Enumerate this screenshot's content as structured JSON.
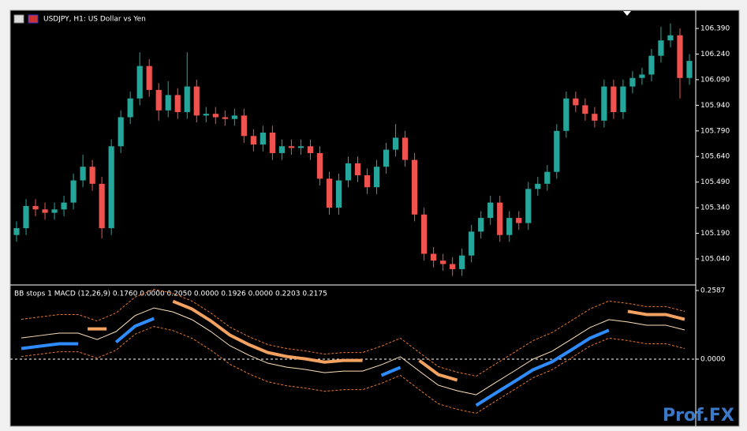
{
  "chart_data": [
    {
      "type": "candlestick",
      "title": "USDJPY, H1:  US Dollar vs Yen",
      "up_color": "#26a69a",
      "down_color": "#ef5350",
      "open": [
        105.18,
        105.22,
        105.35,
        105.33,
        105.31,
        105.33,
        105.37,
        105.5,
        105.58,
        105.48,
        105.22,
        105.7,
        105.87,
        105.98,
        106.17,
        106.03,
        105.91,
        106.0,
        105.9,
        106.05,
        105.88,
        105.89,
        105.87,
        105.86,
        105.88,
        105.76,
        105.71,
        105.78,
        105.66,
        105.7,
        105.69,
        105.7,
        105.66,
        105.51,
        105.34,
        105.5,
        105.6,
        105.53,
        105.46,
        105.58,
        105.68,
        105.75,
        105.62,
        105.3,
        105.07,
        105.03,
        105.01,
        104.98,
        105.06,
        105.2,
        105.28,
        105.37,
        105.18,
        105.28,
        105.25,
        105.45,
        105.48,
        105.55,
        105.79,
        105.98,
        105.94,
        105.89,
        105.85,
        106.05,
        105.9,
        106.05,
        106.1,
        106.12,
        106.23,
        106.32,
        106.35,
        106.1
      ],
      "high": [
        105.26,
        105.39,
        105.39,
        105.37,
        105.37,
        105.41,
        105.54,
        105.65,
        105.62,
        105.52,
        105.74,
        105.91,
        106.02,
        106.25,
        106.21,
        106.07,
        106.08,
        106.04,
        106.25,
        106.09,
        105.93,
        105.93,
        105.91,
        105.92,
        105.92,
        105.8,
        105.82,
        105.82,
        105.74,
        105.74,
        105.74,
        105.74,
        105.7,
        105.55,
        105.54,
        105.64,
        105.64,
        105.57,
        105.62,
        105.72,
        105.83,
        105.79,
        105.66,
        105.34,
        105.11,
        105.07,
        105.05,
        105.1,
        105.24,
        105.32,
        105.41,
        105.41,
        105.32,
        105.32,
        105.49,
        105.52,
        105.59,
        105.83,
        106.02,
        106.02,
        105.98,
        105.93,
        106.09,
        106.09,
        106.09,
        106.14,
        106.16,
        106.27,
        106.4,
        106.42,
        106.39,
        106.24
      ],
      "low": [
        105.14,
        105.18,
        105.29,
        105.27,
        105.27,
        105.29,
        105.33,
        105.46,
        105.44,
        105.16,
        105.18,
        105.66,
        105.83,
        105.94,
        105.99,
        105.85,
        105.87,
        105.86,
        105.86,
        105.84,
        105.84,
        105.83,
        105.82,
        105.82,
        105.72,
        105.67,
        105.67,
        105.62,
        105.62,
        105.65,
        105.65,
        105.62,
        105.47,
        105.3,
        105.3,
        105.46,
        105.49,
        105.42,
        105.42,
        105.54,
        105.64,
        105.58,
        105.26,
        105.03,
        104.99,
        104.97,
        104.94,
        104.94,
        105.02,
        105.16,
        105.24,
        105.14,
        105.14,
        105.21,
        105.21,
        105.41,
        105.44,
        105.51,
        105.75,
        105.9,
        105.85,
        105.81,
        105.81,
        105.86,
        105.86,
        106.01,
        106.06,
        106.08,
        106.19,
        106.28,
        105.98,
        106.06
      ],
      "close": [
        105.22,
        105.35,
        105.33,
        105.31,
        105.33,
        105.37,
        105.5,
        105.58,
        105.48,
        105.22,
        105.7,
        105.87,
        105.98,
        106.17,
        106.03,
        105.91,
        106.0,
        105.9,
        106.05,
        105.88,
        105.89,
        105.87,
        105.86,
        105.88,
        105.76,
        105.71,
        105.78,
        105.66,
        105.7,
        105.69,
        105.7,
        105.66,
        105.51,
        105.34,
        105.5,
        105.6,
        105.53,
        105.46,
        105.58,
        105.68,
        105.75,
        105.62,
        105.3,
        105.07,
        105.03,
        105.01,
        104.98,
        105.06,
        105.2,
        105.28,
        105.37,
        105.18,
        105.28,
        105.25,
        105.45,
        105.48,
        105.55,
        105.79,
        105.98,
        105.94,
        105.89,
        105.85,
        106.05,
        105.9,
        106.05,
        106.1,
        106.12,
        106.23,
        106.32,
        106.35,
        106.1,
        106.2
      ],
      "ylim": [
        104.892,
        106.492
      ],
      "yticks": [
        {
          "value": 105.04,
          "label": "105.040"
        },
        {
          "value": 105.19,
          "label": "105.190"
        },
        {
          "value": 105.34,
          "label": "105.340"
        },
        {
          "value": 105.49,
          "label": "105.490"
        },
        {
          "value": 105.64,
          "label": "105.640"
        },
        {
          "value": 105.79,
          "label": "105.790"
        },
        {
          "value": 105.94,
          "label": "105.940"
        },
        {
          "value": 106.09,
          "label": "106.090"
        },
        {
          "value": 106.24,
          "label": "106.240"
        },
        {
          "value": 106.39,
          "label": "106.390"
        }
      ]
    },
    {
      "type": "line",
      "title": "BB stops 1 MACD (12,26,9) 0.1760 0.0000 0.2050 0.0000 0.1926 0.0000 0.2203 0.2175",
      "zero_line": true,
      "ylim": [
        -0.2438,
        0.2765
      ],
      "yticks": [
        0.2587,
        {
          "value": 0,
          "label": "0.0000"
        }
      ],
      "series": [
        {
          "color": "#e8762c",
          "width": 1,
          "dashed": true,
          "values": [
            0.15,
            0.159,
            0.168,
            0.168,
            0.144,
            0.174,
            0.234,
            0.263,
            0.248,
            0.219,
            0.174,
            0.121,
            0.085,
            0.055,
            0.04,
            0.031,
            0.019,
            0.025,
            0.025,
            0.049,
            0.079,
            0.025,
            -0.028,
            -0.049,
            -0.064,
            -0.019,
            0.025,
            0.07,
            0.1,
            0.144,
            0.189,
            0.219,
            0.21,
            0.198,
            0.198,
            0.18
          ]
        },
        {
          "color": "#e8762c",
          "width": 1,
          "dashed": true,
          "values": [
            0.01,
            0.019,
            0.028,
            0.028,
            0.004,
            0.034,
            0.094,
            0.123,
            0.108,
            0.079,
            0.034,
            -0.019,
            -0.055,
            -0.085,
            -0.1,
            -0.109,
            -0.121,
            -0.115,
            -0.115,
            -0.091,
            -0.061,
            -0.115,
            -0.168,
            -0.189,
            -0.204,
            -0.159,
            -0.115,
            -0.07,
            -0.04,
            0.004,
            0.049,
            0.079,
            0.07,
            0.058,
            0.058,
            0.04
          ]
        },
        {
          "color": "#ffe0b8",
          "width": 1,
          "dashed": false,
          "values": [
            0.08,
            0.089,
            0.098,
            0.098,
            0.074,
            0.104,
            0.164,
            0.193,
            0.178,
            0.149,
            0.104,
            0.051,
            0.015,
            -0.015,
            -0.03,
            -0.039,
            -0.051,
            -0.045,
            -0.045,
            -0.021,
            0.009,
            -0.045,
            -0.098,
            -0.119,
            -0.134,
            -0.089,
            -0.045,
            0.0,
            0.03,
            0.074,
            0.119,
            0.149,
            0.14,
            0.128,
            0.128,
            0.11
          ]
        },
        {
          "color": "#2e8cff",
          "width": 4,
          "dashed": false,
          "values": [
            0.04,
            0.049,
            0.058,
            0.058,
            null,
            0.064,
            0.124,
            0.153,
            null,
            null,
            null,
            null,
            null,
            null,
            null,
            null,
            null,
            null,
            null,
            -0.061,
            -0.031,
            null,
            null,
            null,
            -0.174,
            -0.129,
            -0.085,
            -0.04,
            -0.01,
            0.034,
            0.079,
            0.109,
            null,
            null,
            null,
            null
          ]
        },
        {
          "color": "#f4a261",
          "width": 4,
          "dashed": false,
          "values": [
            null,
            null,
            null,
            null,
            0.114,
            null,
            null,
            null,
            0.218,
            0.189,
            0.144,
            0.091,
            0.055,
            0.025,
            0.01,
            0.001,
            -0.011,
            -0.005,
            -0.005,
            null,
            null,
            -0.005,
            -0.058,
            -0.079,
            null,
            null,
            null,
            null,
            null,
            null,
            null,
            null,
            0.18,
            0.168,
            0.168,
            0.15
          ]
        }
      ]
    }
  ],
  "watermark": "Prof.FX"
}
